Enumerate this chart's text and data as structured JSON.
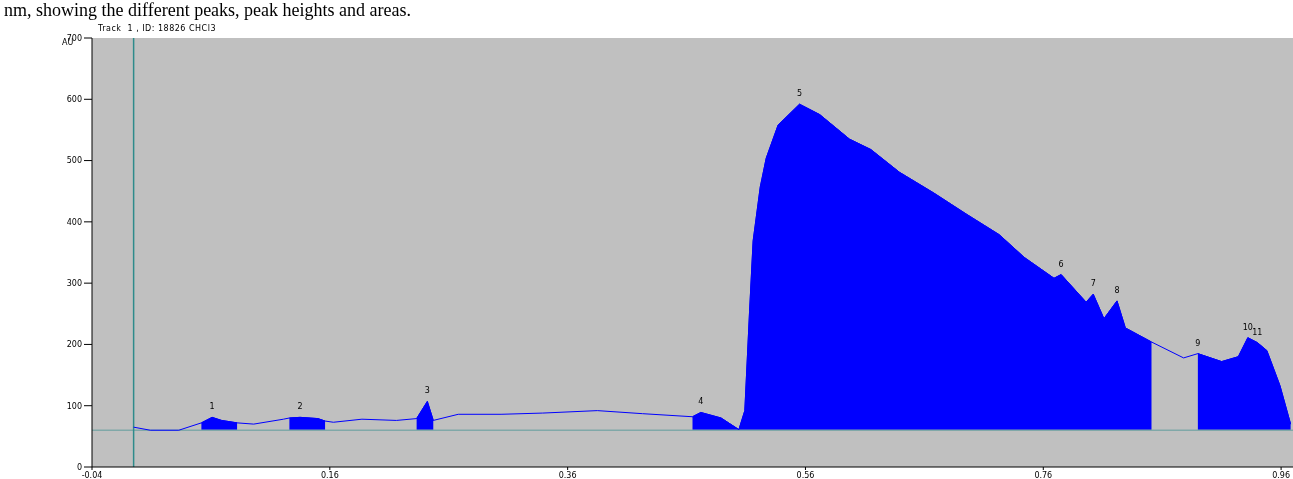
{
  "chart_data": {
    "type": "line",
    "title": "Track  1 , ID: 18826 CHCl3",
    "ylabel": "AU",
    "annotations": [
      "nm, showing the different peaks, peak heights and areas.",
      {
        "text": "1",
        "x": 0.061,
        "y": 81
      },
      {
        "text": "2",
        "x": 0.135,
        "y": 81
      },
      {
        "text": "3",
        "x": 0.242,
        "y": 107
      },
      {
        "text": "4",
        "x": 0.472,
        "y": 89
      },
      {
        "text": "5",
        "x": 0.555,
        "y": 592
      },
      {
        "text": "6",
        "x": 0.775,
        "y": 314
      },
      {
        "text": "7",
        "x": 0.802,
        "y": 282
      },
      {
        "text": "8",
        "x": 0.822,
        "y": 271
      },
      {
        "text": "9",
        "x": 0.89,
        "y": 185
      },
      {
        "text": "10",
        "x": 0.932,
        "y": 211
      },
      {
        "text": "11",
        "x": 0.94,
        "y": 203
      }
    ],
    "x": [
      -0.005,
      0.009,
      0.033,
      0.052,
      0.061,
      0.069,
      0.082,
      0.096,
      0.121,
      0.126,
      0.135,
      0.15,
      0.156,
      0.163,
      0.187,
      0.216,
      0.233,
      0.242,
      0.247,
      0.268,
      0.304,
      0.339,
      0.385,
      0.423,
      0.465,
      0.472,
      0.489,
      0.504,
      0.509,
      0.513,
      0.516,
      0.522,
      0.527,
      0.537,
      0.555,
      0.572,
      0.597,
      0.615,
      0.639,
      0.668,
      0.695,
      0.723,
      0.744,
      0.769,
      0.775,
      0.796,
      0.802,
      0.811,
      0.822,
      0.829,
      0.851,
      0.878,
      0.89,
      0.91,
      0.924,
      0.932,
      0.94,
      0.948,
      0.959,
      0.968
    ],
    "series": [
      {
        "color": "#0000ff",
        "values": [
          65,
          60,
          60,
          72,
          81,
          76,
          72,
          70,
          78,
          80,
          81,
          79,
          75,
          73,
          78,
          76,
          79,
          107,
          76,
          86,
          86,
          88,
          92,
          87,
          82,
          89,
          80,
          61,
          92,
          254,
          369,
          457,
          504,
          558,
          592,
          575,
          535,
          518,
          481,
          447,
          413,
          379,
          342,
          308,
          314,
          269,
          282,
          242,
          271,
          227,
          204,
          178,
          185,
          172,
          180,
          211,
          203,
          190,
          133,
          70
        ]
      },
      {
        "type": "area",
        "color": "#0000ff",
        "values": [
          null,
          null,
          null,
          72,
          81,
          76,
          72,
          null,
          null,
          80,
          81,
          79,
          75,
          null,
          null,
          null,
          79,
          107,
          76,
          null,
          null,
          null,
          null,
          null,
          82,
          89,
          80,
          61,
          92,
          254,
          369,
          457,
          504,
          558,
          592,
          575,
          535,
          518,
          481,
          447,
          413,
          379,
          342,
          308,
          314,
          269,
          282,
          242,
          271,
          227,
          204,
          null,
          185,
          172,
          180,
          211,
          203,
          190,
          133,
          70
        ]
      }
    ],
    "xlim": [
      -0.04,
      0.97
    ],
    "xticks": [
      -0.04,
      0.16,
      0.36,
      0.56,
      0.76,
      0.96
    ],
    "ylim": [
      0,
      700
    ],
    "yticks": [
      0,
      100,
      200,
      300,
      400,
      500,
      600,
      700
    ],
    "ref_lines": [
      {
        "axis": "y",
        "value": 60,
        "color": "#80a8a8"
      },
      {
        "axis": "x",
        "value": -0.005,
        "color": "#2e8b8b"
      }
    ],
    "grid": false,
    "legend": false
  }
}
